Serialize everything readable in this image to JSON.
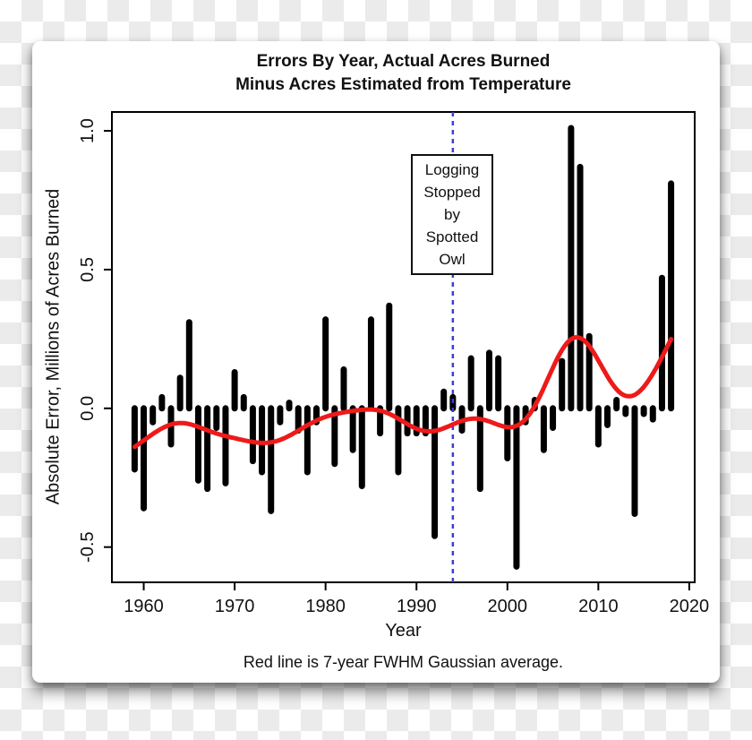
{
  "page": {
    "transparency_checker": {
      "light": "#ffffff",
      "dark": "#ebebeb"
    }
  },
  "chart": {
    "title_line1": "Errors By Year, Actual Acres Burned",
    "title_line2": "Minus Acres Estimated from Temperature",
    "ylabel": "Absolute Error, Millions of Acres Burned",
    "xlabel": "Year",
    "caption": "Red line is 7-year FWHM Gaussian average.",
    "annotation": {
      "lines": [
        "Logging",
        "Stopped",
        "by",
        "Spotted",
        "Owl"
      ],
      "year": 1994
    }
  },
  "chart_data": {
    "type": "bar",
    "title": "Errors By Year, Actual Acres Burned Minus Acres Estimated from Temperature",
    "xlabel": "Year",
    "ylabel": "Absolute Error, Millions of Acres Burned",
    "grid": false,
    "legend": "none",
    "xlim": [
      1956.5,
      2020.6
    ],
    "ylim": [
      -0.627,
      1.068
    ],
    "x_ticks": [
      {
        "value": 1960,
        "label": "1960"
      },
      {
        "value": 1970,
        "label": "1970"
      },
      {
        "value": 1980,
        "label": "1980"
      },
      {
        "value": 1990,
        "label": "1990"
      },
      {
        "value": 2000,
        "label": "2000"
      },
      {
        "value": 2010,
        "label": "2010"
      },
      {
        "value": 2020,
        "label": "2020"
      }
    ],
    "y_ticks": [
      {
        "value": 1.0,
        "label": "1.0"
      },
      {
        "value": 0.5,
        "label": "0.5"
      },
      {
        "value": 0.0,
        "label": "0.0"
      },
      {
        "value": -0.5,
        "label": "-0.5"
      }
    ],
    "x": [
      1959,
      1960,
      1961,
      1962,
      1963,
      1964,
      1965,
      1966,
      1967,
      1968,
      1969,
      1970,
      1971,
      1972,
      1973,
      1974,
      1975,
      1976,
      1977,
      1978,
      1979,
      1980,
      1981,
      1982,
      1983,
      1984,
      1985,
      1986,
      1987,
      1988,
      1989,
      1990,
      1991,
      1992,
      1993,
      1994,
      1995,
      1996,
      1997,
      1998,
      1999,
      2000,
      2001,
      2002,
      2003,
      2004,
      2005,
      2006,
      2007,
      2008,
      2009,
      2010,
      2011,
      2012,
      2013,
      2014,
      2015,
      2016,
      2017,
      2018
    ],
    "values": [
      -0.22,
      -0.36,
      -0.05,
      0.04,
      -0.13,
      0.11,
      0.31,
      -0.26,
      -0.29,
      -0.07,
      -0.27,
      0.13,
      0.04,
      -0.19,
      -0.23,
      -0.37,
      -0.05,
      0.02,
      -0.08,
      -0.23,
      -0.05,
      0.32,
      -0.2,
      0.14,
      -0.15,
      -0.28,
      0.32,
      -0.09,
      0.37,
      -0.23,
      -0.09,
      -0.09,
      -0.09,
      -0.46,
      0.06,
      0.04,
      -0.08,
      0.18,
      -0.29,
      0.2,
      0.18,
      -0.18,
      -0.57,
      -0.05,
      0.03,
      -0.15,
      -0.07,
      0.17,
      1.01,
      0.87,
      0.26,
      -0.13,
      -0.06,
      0.03,
      -0.02,
      -0.38,
      -0.02,
      -0.04,
      0.47,
      0.81
    ],
    "event_line": {
      "year": 1994,
      "style": "dashed",
      "label": "Logging Stopped by Spotted Owl"
    },
    "smoothing": {
      "type": "gaussian",
      "fwhm_years": 7,
      "description": "Red line is 7-year FWHM Gaussian average."
    },
    "colors": {
      "bar": "#000000",
      "smooth_line": "#ee1a1a",
      "event_line": "#3d3dd8",
      "axis": "#000000",
      "panel_bg": "#ffffff"
    }
  }
}
